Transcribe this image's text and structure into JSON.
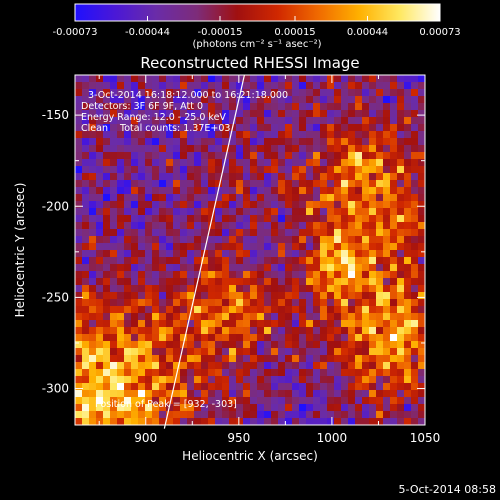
{
  "chart_data": {
    "type": "heatmap",
    "title": "Reconstructed RHESSI Image",
    "xlabel": "Heliocentric X (arcsec)",
    "ylabel": "Heliocentric Y (arcsec)",
    "xlim": [
      862,
      1050
    ],
    "ylim": [
      -320,
      -128
    ],
    "x_ticks": [
      900,
      950,
      1000,
      1050
    ],
    "y_ticks": [
      -150,
      -200,
      -250,
      -300
    ],
    "colorbar": {
      "min": -0.00073,
      "max": 0.00073,
      "tick_values": [
        -0.00073,
        -0.00044,
        -0.00015,
        0.00015,
        0.00044,
        0.00073
      ],
      "tick_labels": [
        "-0.00073",
        "-0.00044",
        "-0.00015",
        "0.00015",
        "0.00044",
        "0.00073"
      ],
      "units_label": "(photons cm⁻² s⁻¹ asec⁻²)",
      "colors": [
        "#1f10ff",
        "#4b18d6",
        "#6a2ca8",
        "#7d2c7a",
        "#a01010",
        "#d02800",
        "#f06a00",
        "#ffb000",
        "#ffe860",
        "#ffffff"
      ]
    },
    "annotations": {
      "time_range": "3-Oct-2014 16:18:12.000 to 16:21:18.000",
      "detectors": "Detectors: 3F 6F 9F, Att 0",
      "energy": "Energy Range: 12.0 - 25.0 keV",
      "method": "Clean    Total counts: 1.37E+03",
      "peak": "Position of Peak = [932, -303]"
    },
    "limb_line": [
      [
        910,
        -322
      ],
      [
        953,
        -128
      ]
    ],
    "grid_on": false
  },
  "timestamp": "5-Oct-2014 08:58"
}
